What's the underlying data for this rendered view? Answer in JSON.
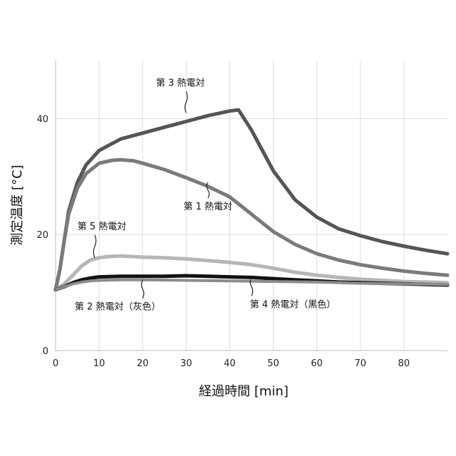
{
  "chart_data": {
    "type": "line",
    "xlabel": "経過時間 [min]",
    "ylabel": "測定温度 [°C]",
    "xlim": [
      0,
      90
    ],
    "ylim": [
      0,
      50
    ],
    "xticks": [
      "0",
      "10",
      "20",
      "30",
      "40",
      "50",
      "60",
      "70",
      "80"
    ],
    "yticks": [
      "0",
      "20",
      "40"
    ],
    "grid": true,
    "series": [
      {
        "name": "第 3 熱電対",
        "color": "#555555",
        "x": [
          0,
          1,
          2,
          3,
          5,
          7,
          10,
          15,
          20,
          25,
          30,
          35,
          40,
          42,
          45,
          50,
          55,
          60,
          65,
          70,
          75,
          80,
          85,
          90
        ],
        "y": [
          10.5,
          14,
          19,
          24,
          29,
          32,
          34.5,
          36.5,
          37.5,
          38.5,
          39.5,
          40.5,
          41.3,
          41.5,
          38,
          31,
          26,
          23,
          21,
          19.8,
          18.8,
          18,
          17.3,
          16.7
        ]
      },
      {
        "name": "第 1 熱電対",
        "color": "#7a7a7a",
        "x": [
          0,
          1,
          2,
          3,
          5,
          7,
          10,
          13,
          15,
          18,
          20,
          25,
          30,
          35,
          40,
          45,
          50,
          55,
          60,
          65,
          70,
          75,
          80,
          85,
          90
        ],
        "y": [
          10.5,
          14,
          19,
          23.5,
          28,
          30.5,
          32.3,
          32.8,
          32.9,
          32.7,
          32.3,
          31.2,
          29.8,
          28.3,
          26.5,
          23.5,
          20.5,
          18.3,
          16.7,
          15.6,
          14.8,
          14.2,
          13.7,
          13.3,
          13
        ]
      },
      {
        "name": "第 5 熱電対",
        "color": "#b5b5b5",
        "x": [
          0,
          2,
          4,
          6,
          8,
          10,
          12,
          15,
          20,
          25,
          30,
          35,
          40,
          45,
          50,
          55,
          60,
          65,
          70,
          75,
          80,
          85,
          90
        ],
        "y": [
          10.5,
          11.5,
          13,
          14.6,
          15.6,
          16,
          16.2,
          16.3,
          16.1,
          16,
          15.8,
          15.5,
          15.2,
          14.8,
          14.2,
          13.5,
          13,
          12.6,
          12.3,
          12.1,
          11.9,
          11.8,
          11.7
        ]
      },
      {
        "name": "第 4 熱電対（黒色）",
        "color": "#111111",
        "x": [
          0,
          2,
          4,
          6,
          8,
          10,
          15,
          20,
          25,
          30,
          35,
          40,
          45,
          50,
          55,
          60,
          65,
          70,
          75,
          80,
          85,
          90
        ],
        "y": [
          10.5,
          11,
          11.7,
          12.2,
          12.5,
          12.7,
          12.8,
          12.8,
          12.8,
          12.9,
          12.8,
          12.7,
          12.6,
          12.4,
          12.2,
          12,
          11.8,
          11.7,
          11.6,
          11.5,
          11.4,
          11.3
        ]
      },
      {
        "name": "第 2 熱電対（灰色）",
        "color": "#8c8c8c",
        "x": [
          0,
          2,
          4,
          6,
          8,
          10,
          15,
          20,
          30,
          40,
          50,
          60,
          70,
          80,
          90
        ],
        "y": [
          10.5,
          11,
          11.5,
          11.8,
          12,
          12.1,
          12.2,
          12.2,
          12.1,
          12,
          11.9,
          11.8,
          11.6,
          11.5,
          11.4
        ]
      }
    ],
    "annotations": [
      {
        "text": "第 3 熱電対",
        "x": 30,
        "y": 41,
        "series": 0
      },
      {
        "text": "第 1 熱電対",
        "x": 35,
        "y": 29,
        "series": 1
      },
      {
        "text": "第 5 熱電対",
        "x": 9,
        "y": 16,
        "series": 2
      },
      {
        "text": "第 2 熱電対（灰色）",
        "x": 20,
        "y": 12.2,
        "series": 4
      },
      {
        "text": "第 4 熱電対（黒色）",
        "x": 45,
        "y": 12.6,
        "series": 3
      }
    ]
  }
}
